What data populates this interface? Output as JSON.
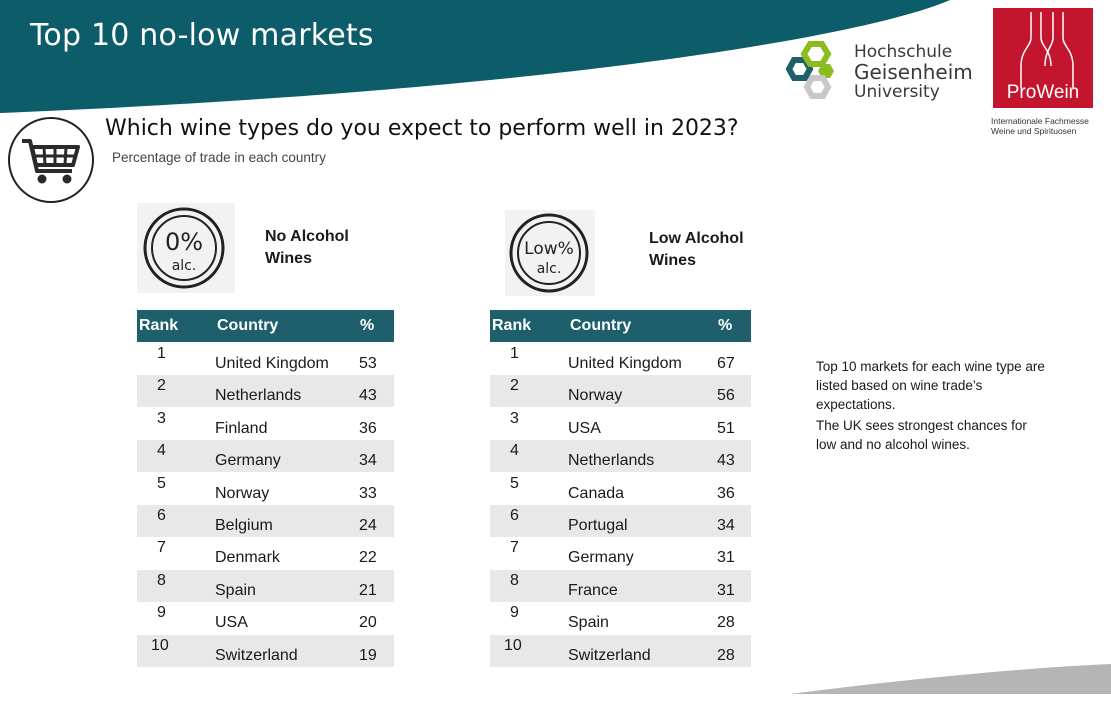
{
  "header": {
    "title": "Top 10 no-low markets",
    "colors": {
      "banner": "#0d5c69",
      "table_header": "#1e5f6b",
      "prowein": "#c4152e"
    }
  },
  "logos": {
    "hgu": {
      "line1": "Hochschule",
      "line2": "Geisenheim",
      "line3": "University"
    },
    "prowein": {
      "name": "ProWein",
      "tagline_1": "Internationale Fachmesse",
      "tagline_2": "Weine und Spirituosen"
    }
  },
  "question": {
    "icon": "shopping-cart-icon",
    "text": "Which wine types do you expect to perform well in 2023?",
    "subtitle": "Percentage of trade in each country"
  },
  "no_alcohol": {
    "badge_line1": "0%",
    "badge_line2": "alc.",
    "title_line1": "No Alcohol",
    "title_line2": "Wines",
    "headers": {
      "rank": "Rank",
      "country": "Country",
      "pct": "%"
    },
    "rows": [
      {
        "rank": "1",
        "country": "United Kingdom",
        "pct": "53"
      },
      {
        "rank": "2",
        "country": "Netherlands",
        "pct": "43"
      },
      {
        "rank": "3",
        "country": "Finland",
        "pct": "36"
      },
      {
        "rank": "4",
        "country": "Germany",
        "pct": "34"
      },
      {
        "rank": "5",
        "country": "Norway",
        "pct": "33"
      },
      {
        "rank": "6",
        "country": "Belgium",
        "pct": "24"
      },
      {
        "rank": "7",
        "country": "Denmark",
        "pct": "22"
      },
      {
        "rank": "8",
        "country": "Spain",
        "pct": "21"
      },
      {
        "rank": "9",
        "country": "USA",
        "pct": "20"
      },
      {
        "rank": "10",
        "country": "Switzerland",
        "pct": "19"
      }
    ]
  },
  "low_alcohol": {
    "badge_line1": "Low%",
    "badge_line2": "alc.",
    "title_line1": "Low Alcohol",
    "title_line2": "Wines",
    "headers": {
      "rank": "Rank",
      "country": "Country",
      "pct": "%"
    },
    "rows": [
      {
        "rank": "1",
        "country": "United Kingdom",
        "pct": "67"
      },
      {
        "rank": "2",
        "country": "Norway",
        "pct": "56"
      },
      {
        "rank": "3",
        "country": "USA",
        "pct": "51"
      },
      {
        "rank": "4",
        "country": "Netherlands",
        "pct": "43"
      },
      {
        "rank": "5",
        "country": "Canada",
        "pct": "36"
      },
      {
        "rank": "6",
        "country": "Portugal",
        "pct": "34"
      },
      {
        "rank": "7",
        "country": "Germany",
        "pct": "31"
      },
      {
        "rank": "8",
        "country": "France",
        "pct": "31"
      },
      {
        "rank": "9",
        "country": "Spain",
        "pct": "28"
      },
      {
        "rank": "10",
        "country": "Switzerland",
        "pct": "28"
      }
    ]
  },
  "note": {
    "para1": "Top 10 markets for each wine type are listed based on wine trade’s expectations.",
    "para2": "The UK sees strongest chances for low and no alcohol wines."
  }
}
